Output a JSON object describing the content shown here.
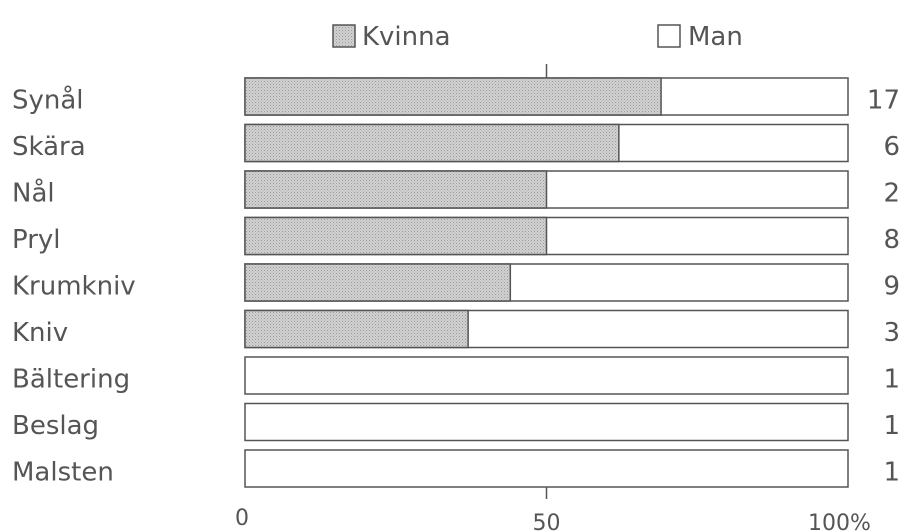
{
  "chart_data": {
    "type": "bar",
    "stacked_percent": true,
    "orientation": "horizontal",
    "categories": [
      "Synål",
      "Skära",
      "Nål",
      "Pryl",
      "Krumkniv",
      "Kniv",
      "Bältering",
      "Beslag",
      "Malsten"
    ],
    "counts": [
      "17",
      "6",
      "2",
      "8",
      "9",
      "3",
      "1",
      "1",
      "1"
    ],
    "series": [
      {
        "name": "Kvinna",
        "values": [
          69,
          62,
          50,
          50,
          44,
          37,
          0,
          0,
          0
        ],
        "color": "#c8c8c8",
        "pattern": "dotted"
      },
      {
        "name": "Man",
        "values": [
          31,
          38,
          50,
          50,
          56,
          63,
          100,
          100,
          100
        ],
        "color": "#ffffff"
      }
    ],
    "xlim": [
      0,
      100
    ],
    "x_ticks": [
      "0",
      "50",
      "100%"
    ],
    "legend_position": "top",
    "grid": false
  }
}
